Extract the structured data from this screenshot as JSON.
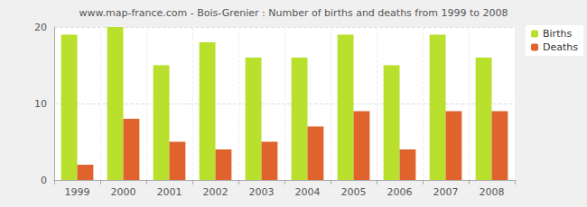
{
  "chart_data": {
    "type": "bar",
    "title": "www.map-france.com - Bois-Grenier : Number of births and deaths from 1999 to 2008",
    "categories": [
      "1999",
      "2000",
      "2001",
      "2002",
      "2003",
      "2004",
      "2005",
      "2006",
      "2007",
      "2008"
    ],
    "series": [
      {
        "name": "Births",
        "color": "#b8e02c",
        "values": [
          19,
          20,
          15,
          18,
          16,
          16,
          19,
          15,
          19,
          16
        ]
      },
      {
        "name": "Deaths",
        "color": "#e0632d",
        "values": [
          2,
          8,
          5,
          4,
          5,
          7,
          9,
          4,
          9,
          9
        ]
      }
    ],
    "ylim": [
      0,
      20
    ],
    "yticks": [
      0,
      10,
      20
    ],
    "grid": true,
    "legend": "upper right"
  }
}
